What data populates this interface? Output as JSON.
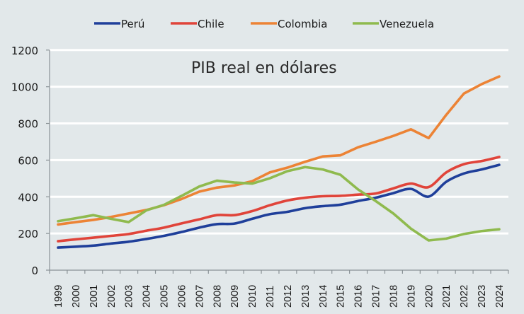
{
  "chart_data": {
    "type": "line",
    "title": "PIB real en dólares",
    "xlabel": "",
    "ylabel": "",
    "ylim": [
      0,
      1200
    ],
    "yticks": [
      0,
      200,
      400,
      600,
      800,
      1000,
      1200
    ],
    "grid": true,
    "legend_position": "top",
    "x": [
      "1999",
      "2000",
      "2001",
      "2002",
      "2003",
      "2004",
      "2005",
      "2006",
      "2007",
      "2008",
      "2009",
      "2010",
      "2011",
      "2012",
      "2013",
      "2014",
      "2015",
      "2016",
      "2017",
      "2018",
      "2019",
      "2020",
      "2021",
      "2022",
      "2023",
      "2024"
    ],
    "series": [
      {
        "name": "Perú",
        "color": "#1f3f9a",
        "values": [
          123,
          128,
          134,
          145,
          155,
          170,
          187,
          208,
          232,
          251,
          254,
          280,
          305,
          318,
          338,
          349,
          357,
          377,
          395,
          420,
          443,
          401,
          482,
          527,
          549,
          574
        ]
      },
      {
        "name": "Chile",
        "color": "#e0443a",
        "values": [
          158,
          168,
          177,
          187,
          197,
          215,
          232,
          255,
          277,
          300,
          300,
          322,
          354,
          380,
          395,
          403,
          405,
          412,
          418,
          446,
          472,
          453,
          533,
          578,
          595,
          617
        ]
      },
      {
        "name": "Colombia",
        "color": "#ec8335",
        "values": [
          249,
          262,
          274,
          290,
          309,
          328,
          354,
          388,
          428,
          450,
          462,
          485,
          533,
          559,
          591,
          620,
          626,
          670,
          700,
          732,
          768,
          720,
          847,
          963,
          1014,
          1056
        ]
      },
      {
        "name": "Venezuela",
        "color": "#8fba4e",
        "values": [
          267,
          283,
          300,
          280,
          262,
          326,
          356,
          405,
          456,
          488,
          478,
          472,
          501,
          540,
          562,
          549,
          520,
          440,
          377,
          309,
          226,
          162,
          172,
          197,
          213,
          223
        ]
      }
    ]
  }
}
